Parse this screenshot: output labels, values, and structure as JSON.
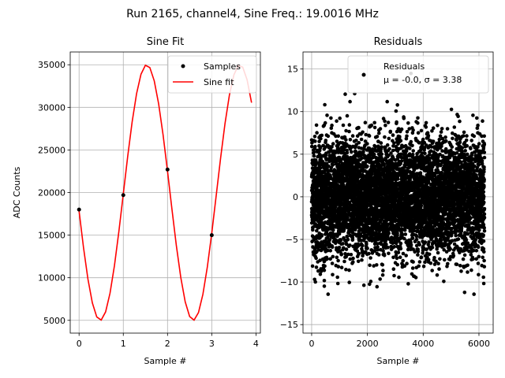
{
  "figure": {
    "suptitle": "Run 2165, channel4, Sine Freq.: 19.0016 MHz"
  },
  "chart_data": [
    {
      "type": "line",
      "title": "Sine Fit",
      "xlabel": "Sample #",
      "ylabel": "ADC Counts",
      "xlim": [
        -0.2,
        4.1
      ],
      "ylim": [
        3500,
        36500
      ],
      "xticks": [
        0,
        1,
        2,
        3,
        4
      ],
      "yticks": [
        5000,
        10000,
        15000,
        20000,
        25000,
        30000,
        35000
      ],
      "grid": true,
      "legend_loc": "upper right",
      "legend_labels": [
        "Samples",
        "Sine fit"
      ],
      "series": [
        {
          "name": "Samples",
          "kind": "points",
          "color": "#000000",
          "x": [
            0,
            1,
            2,
            3
          ],
          "y": [
            18000,
            19700,
            22700,
            15000
          ]
        },
        {
          "name": "Sine fit",
          "kind": "curve",
          "color": "#ff0000",
          "model": {
            "offset": 20000,
            "amplitude": 15000,
            "period_samples": 2.105,
            "phase_peak_x": 1.53
          },
          "x_range": [
            0,
            3.9
          ],
          "n_points": 40
        }
      ]
    },
    {
      "type": "scatter",
      "title": "Residuals",
      "xlabel": "Sample #",
      "ylabel": "",
      "xlim": [
        -310,
        6510
      ],
      "ylim": [
        -16,
        17
      ],
      "xticks": [
        0,
        2000,
        4000,
        6000
      ],
      "yticks": [
        -15,
        -10,
        -5,
        0,
        5,
        10,
        15
      ],
      "grid": true,
      "legend_loc": "upper right",
      "legend_labels": [
        "Residuals",
        "μ = -0.0, σ = 3.38"
      ],
      "series": [
        {
          "name": "Residuals",
          "color": "#000000",
          "x_range": [
            0,
            6200
          ],
          "n_points": 6200,
          "mean": 0.0,
          "sigma": 3.38,
          "y_min": -14.9,
          "y_max": 15.3
        }
      ]
    }
  ]
}
